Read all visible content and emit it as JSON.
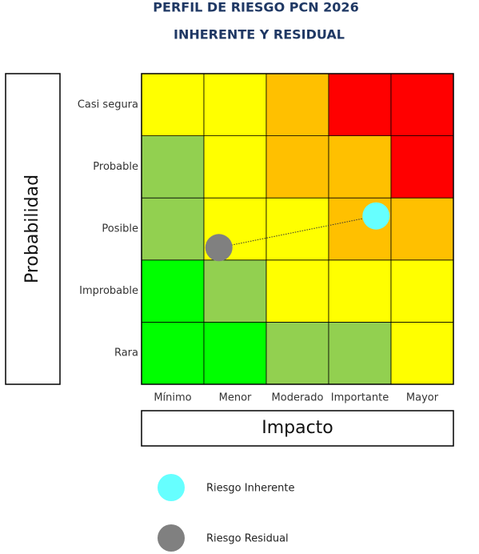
{
  "chart_data": {
    "type": "risk-matrix",
    "title": "PERFIL DE RIESGO PCN 2026",
    "subtitle": "INHERENTE Y RESIDUAL",
    "x_label": "Impacto",
    "y_label": "Probabilidad",
    "x_categories": [
      "Mínimo",
      "Menor",
      "Moderado",
      "Importante",
      "Mayor"
    ],
    "y_categories": [
      "Rara",
      "Improbable",
      "Posible",
      "Probable",
      "Casi segura"
    ],
    "cell_colors": [
      [
        "#00ff00",
        "#00ff00",
        "#92d050",
        "#92d050",
        "#ffff00"
      ],
      [
        "#00ff00",
        "#92d050",
        "#ffff00",
        "#ffff00",
        "#ffff00"
      ],
      [
        "#92d050",
        "#ffff00",
        "#ffff00",
        "#ffc000",
        "#ffc000"
      ],
      [
        "#92d050",
        "#ffff00",
        "#ffc000",
        "#ffc000",
        "#ff0000"
      ],
      [
        "#ffff00",
        "#ffff00",
        "#ffc000",
        "#ff0000",
        "#ff0000"
      ]
    ],
    "xlim": [
      0,
      5
    ],
    "ylim": [
      0,
      5
    ],
    "series": [
      {
        "name": "Riesgo Inherente",
        "color": "#66ffff",
        "x": [
          3.76
        ],
        "y": [
          2.71
        ]
      },
      {
        "name": "Riesgo Residual",
        "color": "#808080",
        "x": [
          1.24
        ],
        "y": [
          2.2
        ]
      }
    ]
  }
}
